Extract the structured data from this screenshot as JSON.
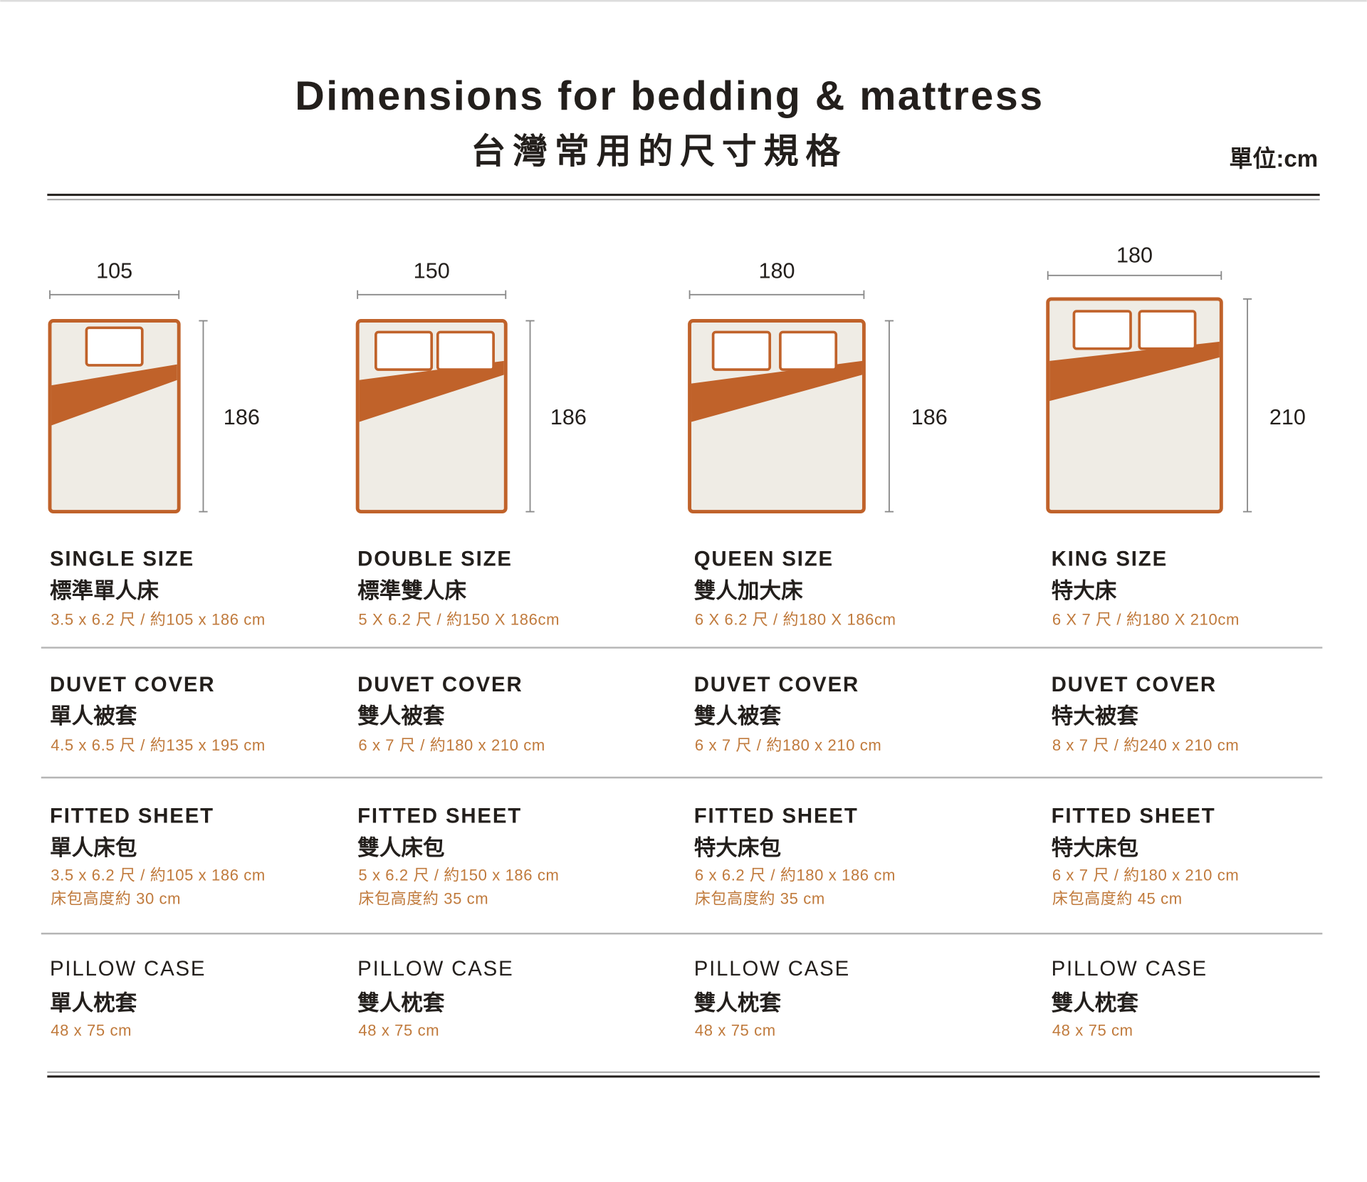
{
  "title": "Dimensions for bedding & mattress",
  "subtitle": "台灣常用的尺寸規格",
  "unit_label": "單位:cm",
  "colors": {
    "accent": "#c0622a",
    "bed_fill": "#efece5",
    "text": "#231f1c",
    "spec_text": "#c07a3c",
    "rule": "#b5b5b5"
  },
  "beds": [
    {
      "width_label": "105",
      "length_label": "186",
      "pillows": 1
    },
    {
      "width_label": "150",
      "length_label": "186",
      "pillows": 2
    },
    {
      "width_label": "180",
      "length_label": "186",
      "pillows": 2
    },
    {
      "width_label": "180",
      "length_label": "210",
      "pillows": 2
    }
  ],
  "columns": [
    {
      "size": {
        "name": "SINGLE SIZE",
        "zh": "標準單人床",
        "spec": "3.5 x 6.2 尺 / 約105 x 186 cm"
      },
      "duvet": {
        "name": "DUVET COVER",
        "zh": "單人被套",
        "spec": "4.5 x 6.5 尺 / 約135 x 195 cm"
      },
      "fitted": {
        "name": "FITTED SHEET",
        "zh": "單人床包",
        "spec": "3.5 x 6.2 尺 / 約105 x 186 cm",
        "height": "床包高度約 30 cm"
      },
      "pillow": {
        "name": "PILLOW CASE",
        "zh": "單人枕套",
        "spec": "48 x 75 cm"
      }
    },
    {
      "size": {
        "name": "DOUBLE SIZE",
        "zh": "標準雙人床",
        "spec": "5 X 6.2 尺 / 約150 X 186cm"
      },
      "duvet": {
        "name": "DUVET COVER",
        "zh": "雙人被套",
        "spec": "6 x 7 尺 / 約180 x 210 cm"
      },
      "fitted": {
        "name": "FITTED SHEET",
        "zh": "雙人床包",
        "spec": "5 x 6.2 尺 / 約150 x 186 cm",
        "height": "床包高度約 35 cm"
      },
      "pillow": {
        "name": "PILLOW CASE",
        "zh": "雙人枕套",
        "spec": "48 x 75 cm"
      }
    },
    {
      "size": {
        "name": "QUEEN SIZE",
        "zh": "雙人加大床",
        "spec": "6 X 6.2 尺 / 約180 X 186cm"
      },
      "duvet": {
        "name": "DUVET COVER",
        "zh": "雙人被套",
        "spec": "6 x 7 尺 / 約180 x 210 cm"
      },
      "fitted": {
        "name": "FITTED SHEET",
        "zh": "特大床包",
        "spec": "6 x 6.2 尺 / 約180 x 186 cm",
        "height": "床包高度約 35 cm"
      },
      "pillow": {
        "name": "PILLOW CASE",
        "zh": "雙人枕套",
        "spec": "48 x 75 cm"
      }
    },
    {
      "size": {
        "name": "KING SIZE",
        "zh": "特大床",
        "spec": "6 X 7 尺 / 約180 X 210cm"
      },
      "duvet": {
        "name": "DUVET COVER",
        "zh": "特大被套",
        "spec": "8 x 7 尺 / 約240 x 210 cm"
      },
      "fitted": {
        "name": "FITTED SHEET",
        "zh": "特大床包",
        "spec": "6 x 7 尺 / 約180 x 210 cm",
        "height": "床包高度約 45 cm"
      },
      "pillow": {
        "name": "PILLOW CASE",
        "zh": "雙人枕套",
        "spec": "48 x 75 cm"
      }
    }
  ]
}
